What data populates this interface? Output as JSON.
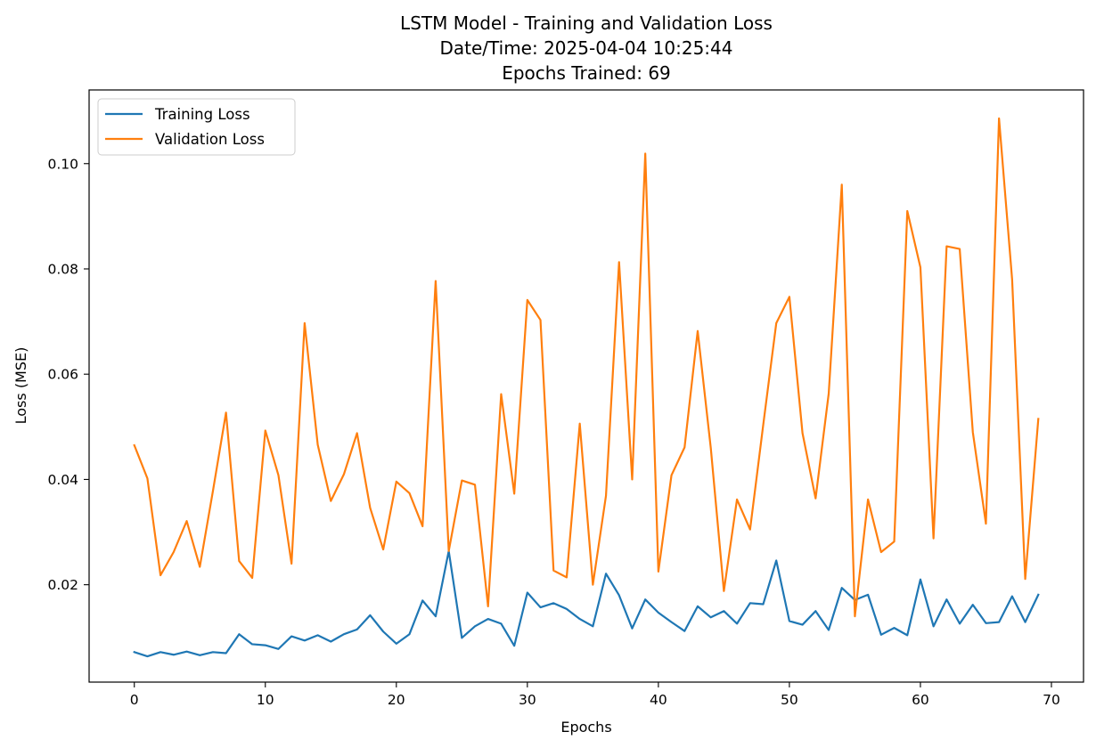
{
  "chart_data": {
    "type": "line",
    "title_lines": [
      "LSTM Model - Training and Validation Loss",
      "Date/Time: 2025-04-04 10:25:44",
      "Epochs Trained: 69"
    ],
    "xlabel": "Epochs",
    "ylabel": "Loss (MSE)",
    "xlim": [
      -3.45,
      72.45
    ],
    "ylim": [
      0.0015,
      0.114
    ],
    "xticks": [
      0,
      10,
      20,
      30,
      40,
      50,
      60,
      70
    ],
    "xtick_labels": [
      "0",
      "10",
      "20",
      "30",
      "40",
      "50",
      "60",
      "70"
    ],
    "yticks": [
      0.02,
      0.04,
      0.06,
      0.08,
      0.1
    ],
    "ytick_labels": [
      "0.02",
      "0.04",
      "0.06",
      "0.08",
      "0.10"
    ],
    "legend_position": "upper-left",
    "grid": false,
    "x": [
      0,
      1,
      2,
      3,
      4,
      5,
      6,
      7,
      8,
      9,
      10,
      11,
      12,
      13,
      14,
      15,
      16,
      17,
      18,
      19,
      20,
      21,
      22,
      23,
      24,
      25,
      26,
      27,
      28,
      29,
      30,
      31,
      32,
      33,
      34,
      35,
      36,
      37,
      38,
      39,
      40,
      41,
      42,
      43,
      44,
      45,
      46,
      47,
      48,
      49,
      50,
      51,
      52,
      53,
      54,
      55,
      56,
      57,
      58,
      59,
      60,
      61,
      62,
      63,
      64,
      65,
      66,
      67,
      68,
      69
    ],
    "series": [
      {
        "name": "Training Loss",
        "color": "#1f77b4",
        "values": [
          0.0072,
          0.0064,
          0.0072,
          0.0067,
          0.0073,
          0.0066,
          0.0072,
          0.007,
          0.0106,
          0.0087,
          0.0085,
          0.0078,
          0.0102,
          0.0094,
          0.0104,
          0.0092,
          0.0106,
          0.0115,
          0.0142,
          0.0111,
          0.0088,
          0.0106,
          0.017,
          0.014,
          0.0264,
          0.0099,
          0.0121,
          0.0135,
          0.0126,
          0.0084,
          0.0185,
          0.0157,
          0.0165,
          0.0154,
          0.0135,
          0.0121,
          0.0221,
          0.018,
          0.0117,
          0.0172,
          0.0147,
          0.0129,
          0.0112,
          0.0159,
          0.0138,
          0.015,
          0.0126,
          0.0165,
          0.0163,
          0.0246,
          0.0131,
          0.0124,
          0.015,
          0.0114,
          0.0194,
          0.0171,
          0.0181,
          0.0105,
          0.0118,
          0.0104,
          0.021,
          0.0121,
          0.0172,
          0.0126,
          0.0162,
          0.0127,
          0.0129,
          0.0178,
          0.0129,
          0.0181
        ]
      },
      {
        "name": "Validation Loss",
        "color": "#ff7f0e",
        "values": [
          0.0465,
          0.0402,
          0.0218,
          0.0262,
          0.0321,
          0.0234,
          0.0378,
          0.0527,
          0.0245,
          0.0213,
          0.0493,
          0.0408,
          0.024,
          0.0697,
          0.0466,
          0.0359,
          0.041,
          0.0488,
          0.0346,
          0.0267,
          0.0396,
          0.0374,
          0.0311,
          0.0777,
          0.0264,
          0.0398,
          0.039,
          0.0159,
          0.0562,
          0.0373,
          0.0741,
          0.0703,
          0.0227,
          0.0214,
          0.0506,
          0.02,
          0.0369,
          0.0813,
          0.04,
          0.1019,
          0.0225,
          0.0408,
          0.0461,
          0.0682,
          0.046,
          0.0188,
          0.0362,
          0.0305,
          0.0503,
          0.0697,
          0.0747,
          0.0488,
          0.0364,
          0.0563,
          0.096,
          0.014,
          0.0362,
          0.0262,
          0.0282,
          0.091,
          0.0803,
          0.0288,
          0.0843,
          0.0838,
          0.049,
          0.0316,
          0.1086,
          0.078,
          0.0211,
          0.0515
        ]
      }
    ]
  }
}
